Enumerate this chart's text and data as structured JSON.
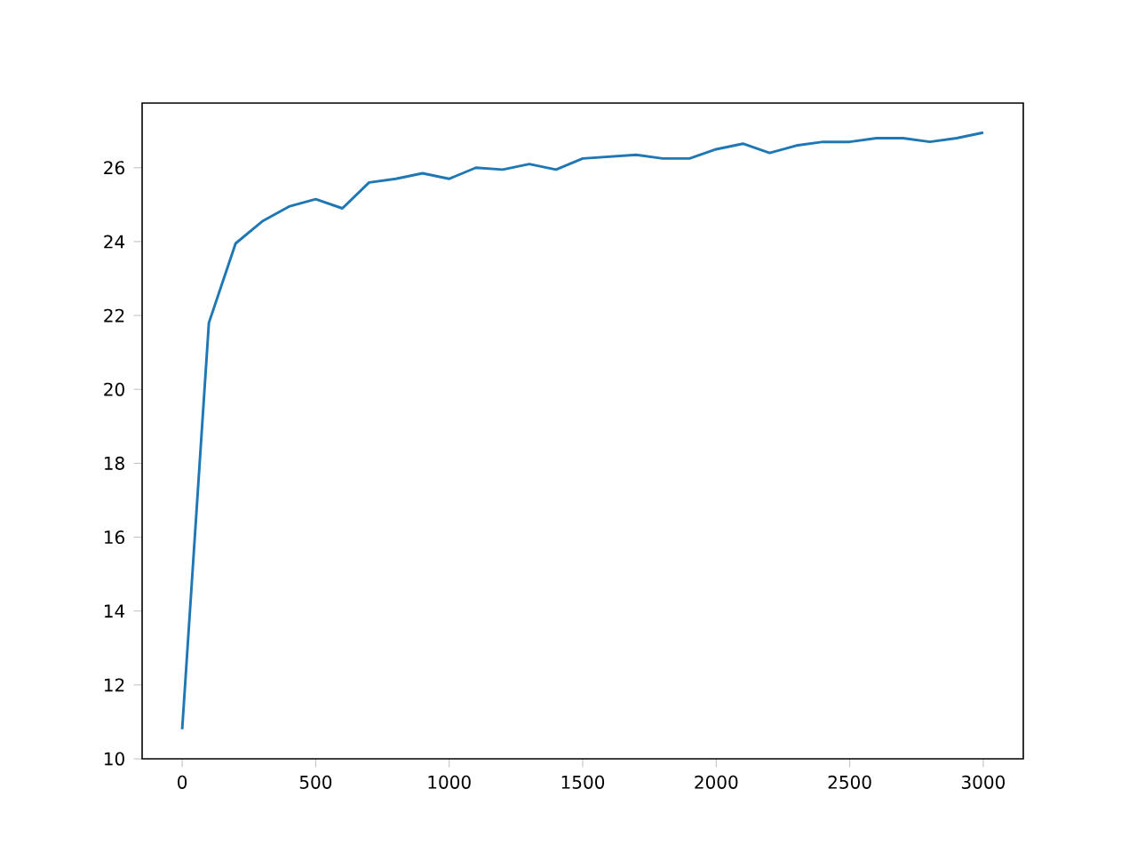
{
  "chart_data": {
    "type": "line",
    "x": [
      0,
      100,
      200,
      300,
      400,
      500,
      600,
      700,
      800,
      900,
      1000,
      1100,
      1200,
      1300,
      1400,
      1500,
      1600,
      1700,
      1800,
      1900,
      2000,
      2100,
      2200,
      2300,
      2400,
      2500,
      2600,
      2700,
      2800,
      2900,
      3000
    ],
    "series": [
      {
        "color": "#1f77b4",
        "values": [
          10.8,
          21.8,
          23.95,
          24.55,
          24.95,
          25.15,
          24.9,
          25.6,
          25.7,
          25.85,
          25.7,
          26.0,
          25.95,
          26.1,
          25.95,
          26.25,
          26.3,
          26.35,
          26.25,
          26.25,
          26.5,
          26.65,
          26.4,
          26.6,
          26.7,
          26.7,
          26.8,
          26.8,
          26.7,
          26.8,
          26.95
        ]
      }
    ],
    "xlim": [
      -150,
      3150
    ],
    "ylim": [
      10,
      27.75
    ],
    "xticks": [
      0,
      500,
      1000,
      1500,
      2000,
      2500,
      3000
    ],
    "yticks": [
      10,
      12,
      14,
      16,
      18,
      20,
      22,
      24,
      26
    ]
  }
}
